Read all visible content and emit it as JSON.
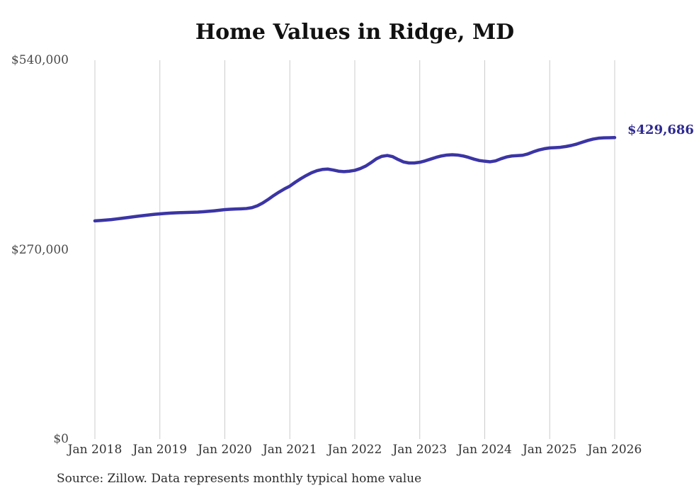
{
  "title": "Home Values in Ridge, MD",
  "source_note": "Source: Zillow. Data represents monthly typical home value",
  "colors": {
    "line": "#3b35a5",
    "end_label": "#2e2a8f",
    "gridline": "#cccccc",
    "y_tick": "#4a4a4a",
    "x_tick": "#333333",
    "title": "#111111",
    "source": "#2b2b2b"
  },
  "chart_data": {
    "type": "line",
    "title": "Home Values in Ridge, MD",
    "xlabel": "",
    "ylabel": "",
    "ylim": [
      0,
      540000
    ],
    "grid": "vertical-only",
    "legend": "none",
    "x_frequency": "monthly",
    "x_start": "Jan 2018",
    "x_end": "Jan 2026",
    "x_tick_labels": [
      "Jan 2018",
      "Jan 2019",
      "Jan 2020",
      "Jan 2021",
      "Jan 2022",
      "Jan 2023",
      "Jan 2024",
      "Jan 2025",
      "Jan 2026"
    ],
    "y_ticks": [
      {
        "label": "$0",
        "value": 0
      },
      {
        "label": "$270,000",
        "value": 270000
      },
      {
        "label": "$540,000",
        "value": 540000
      }
    ],
    "end_label": "$429,686",
    "end_value": 429686,
    "series": [
      {
        "name": "Typical home value",
        "values": [
          311000,
          311500,
          312100,
          312800,
          313700,
          314700,
          315700,
          316700,
          317700,
          318600,
          319500,
          320300,
          321000,
          321600,
          322100,
          322500,
          322800,
          323000,
          323200,
          323500,
          324000,
          324600,
          325300,
          326100,
          327000,
          327500,
          327900,
          328200,
          328600,
          329800,
          332500,
          336500,
          341500,
          347000,
          352000,
          356500,
          360500,
          366000,
          371000,
          375500,
          379500,
          382500,
          384300,
          384800,
          383500,
          381800,
          381200,
          381800,
          383000,
          385500,
          389000,
          394000,
          399500,
          403000,
          404200,
          402500,
          398500,
          395000,
          393500,
          393500,
          394500,
          396500,
          399000,
          401500,
          403500,
          404800,
          405200,
          404800,
          403500,
          401500,
          399000,
          397000,
          396000,
          395200,
          396500,
          399500,
          402000,
          403500,
          404000,
          404500,
          406500,
          409500,
          412000,
          413800,
          415000,
          415400,
          415900,
          417000,
          418500,
          420500,
          423000,
          425500,
          427500,
          428800,
          429300,
          429500,
          429686
        ]
      }
    ]
  }
}
